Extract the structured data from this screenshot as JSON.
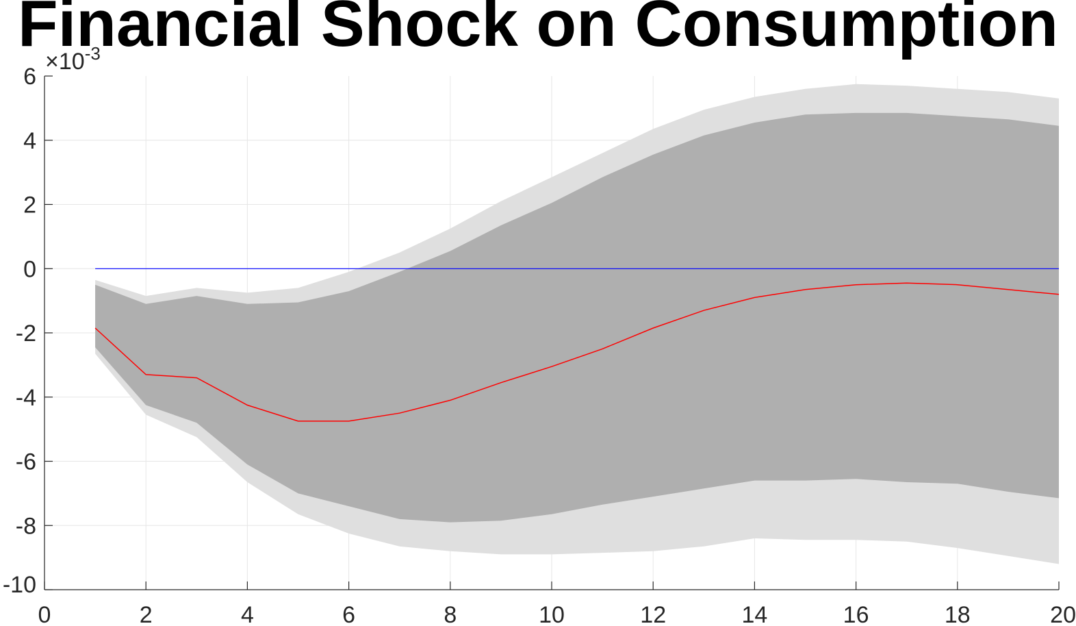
{
  "chart_data": {
    "type": "area",
    "title": "Financial Shock on Consumption",
    "xlabel": "",
    "ylabel": "",
    "xlim": [
      0,
      20
    ],
    "ylim": [
      -10,
      6
    ],
    "y_exponent_label": "×10",
    "y_exponent_power": "-3",
    "y_scale_factor": 0.001,
    "grid": true,
    "x_ticks": [
      0,
      2,
      4,
      6,
      8,
      10,
      12,
      14,
      16,
      18,
      20
    ],
    "y_ticks": [
      -10,
      -8,
      -6,
      -4,
      -2,
      0,
      2,
      4,
      6
    ],
    "x": [
      1,
      2,
      3,
      4,
      5,
      6,
      7,
      8,
      9,
      10,
      11,
      12,
      13,
      14,
      15,
      16,
      17,
      18,
      19,
      20
    ],
    "colors": {
      "outer_band": "#dfdfdf",
      "inner_band": "#afafaf",
      "median": "#ff0000",
      "zero_line": "#0000ff",
      "grid": "#e6e6e6",
      "axis": "#262626"
    },
    "series": [
      {
        "role": "outer_upper",
        "values": [
          -0.35,
          -0.85,
          -0.6,
          -0.75,
          -0.6,
          -0.1,
          0.5,
          1.25,
          2.1,
          2.85,
          3.6,
          4.35,
          4.95,
          5.35,
          5.6,
          5.75,
          5.7,
          5.6,
          5.5,
          5.3
        ]
      },
      {
        "role": "outer_lower",
        "values": [
          -2.65,
          -4.55,
          -5.25,
          -6.65,
          -7.65,
          -8.25,
          -8.65,
          -8.8,
          -8.9,
          -8.9,
          -8.85,
          -8.8,
          -8.65,
          -8.4,
          -8.45,
          -8.45,
          -8.5,
          -8.7,
          -8.95,
          -9.2
        ]
      },
      {
        "role": "inner_upper",
        "values": [
          -0.5,
          -1.1,
          -0.85,
          -1.1,
          -1.05,
          -0.7,
          -0.1,
          0.55,
          1.35,
          2.05,
          2.85,
          3.55,
          4.15,
          4.55,
          4.8,
          4.85,
          4.85,
          4.75,
          4.65,
          4.45
        ]
      },
      {
        "role": "inner_lower",
        "values": [
          -2.45,
          -4.25,
          -4.8,
          -6.1,
          -7.0,
          -7.4,
          -7.8,
          -7.9,
          -7.85,
          -7.65,
          -7.35,
          -7.1,
          -6.85,
          -6.6,
          -6.6,
          -6.55,
          -6.65,
          -6.7,
          -6.95,
          -7.15
        ]
      },
      {
        "role": "median",
        "values": [
          -1.85,
          -3.3,
          -3.4,
          -4.25,
          -4.75,
          -4.75,
          -4.5,
          -4.1,
          -3.55,
          -3.05,
          -2.5,
          -1.85,
          -1.3,
          -0.9,
          -0.65,
          -0.5,
          -0.45,
          -0.5,
          -0.65,
          -0.8
        ]
      },
      {
        "role": "zero",
        "values": [
          0,
          0,
          0,
          0,
          0,
          0,
          0,
          0,
          0,
          0,
          0,
          0,
          0,
          0,
          0,
          0,
          0,
          0,
          0,
          0
        ]
      }
    ]
  }
}
